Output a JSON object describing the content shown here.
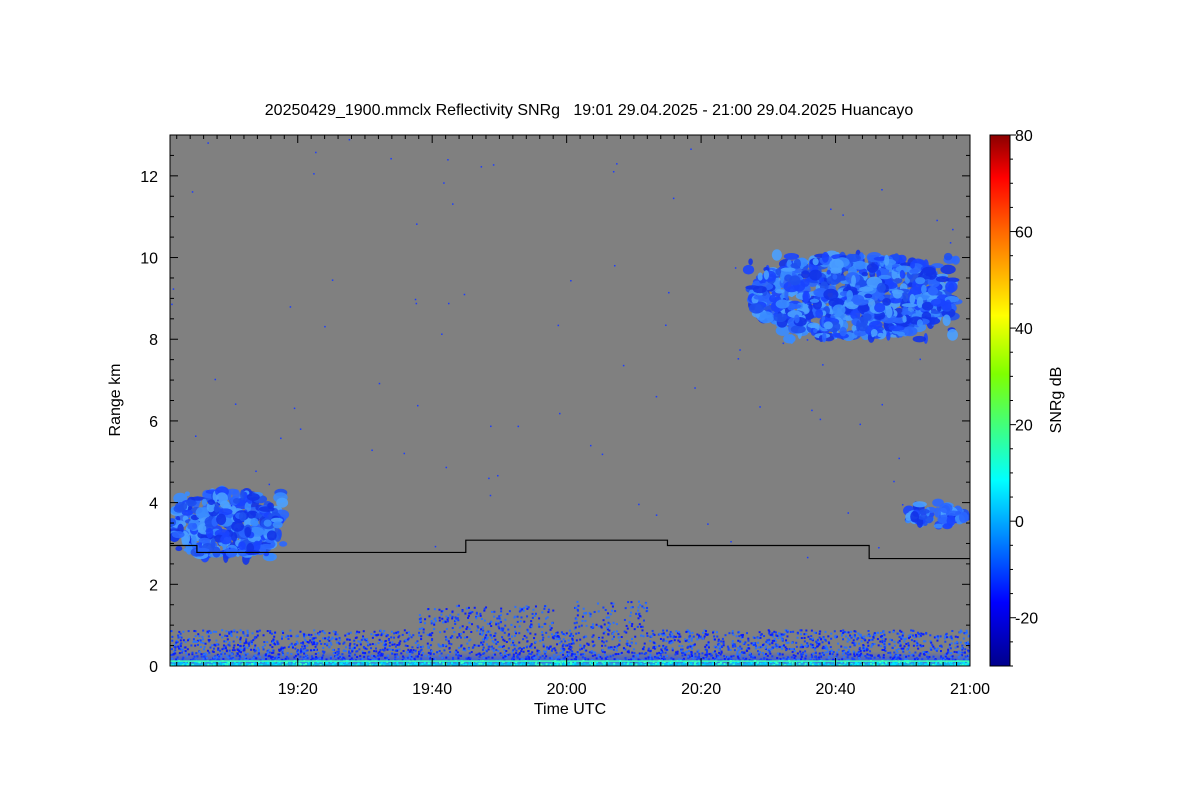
{
  "chart_data": {
    "type": "heatmap",
    "title": "20250429_1900.mmclx Reflectivity SNRg   19:01 29.04.2025 - 21:00 29.04.2025 Huancayo",
    "xlabel": "Time UTC",
    "ylabel": "Range km",
    "colorbar_label": "SNRg dB",
    "xlim_minutes_after_1900": [
      1,
      120
    ],
    "ylim_km": [
      0,
      13
    ],
    "x_ticks": [
      {
        "minute": 20,
        "label": "19:20"
      },
      {
        "minute": 40,
        "label": "19:40"
      },
      {
        "minute": 60,
        "label": "20:00"
      },
      {
        "minute": 80,
        "label": "20:20"
      },
      {
        "minute": 100,
        "label": "20:40"
      },
      {
        "minute": 120,
        "label": "21:00"
      }
    ],
    "y_ticks": [
      0,
      2,
      4,
      6,
      8,
      10,
      12
    ],
    "colorbar_range_db": [
      -30,
      80
    ],
    "colorbar_ticks": [
      -20,
      0,
      20,
      40,
      60,
      80
    ],
    "background_color": "#808080",
    "black_line_height_km": [
      {
        "from": 1,
        "to": 5,
        "km": 2.95
      },
      {
        "from": 5,
        "to": 45,
        "km": 2.78
      },
      {
        "from": 45,
        "to": 75,
        "km": 3.08
      },
      {
        "from": 75,
        "to": 105,
        "km": 2.95
      },
      {
        "from": 105,
        "to": 120,
        "km": 2.63
      }
    ],
    "echo_regions": [
      {
        "name": "upper-cloud",
        "time_min": [
          87,
          118
        ],
        "range_km": [
          8.0,
          10.1
        ],
        "snr_db": [
          -20,
          -5
        ]
      },
      {
        "name": "low-cloud-left",
        "time_min": [
          1,
          18
        ],
        "range_km": [
          2.6,
          4.3
        ],
        "snr_db": [
          -22,
          -8
        ]
      },
      {
        "name": "low-cloud-right",
        "time_min": [
          110,
          120
        ],
        "range_km": [
          3.4,
          4.0
        ],
        "snr_db": [
          -22,
          -10
        ]
      },
      {
        "name": "boundary-layer",
        "time_min": [
          1,
          120
        ],
        "range_km": [
          0,
          1.6
        ],
        "snr_db": [
          -25,
          15
        ]
      }
    ]
  }
}
